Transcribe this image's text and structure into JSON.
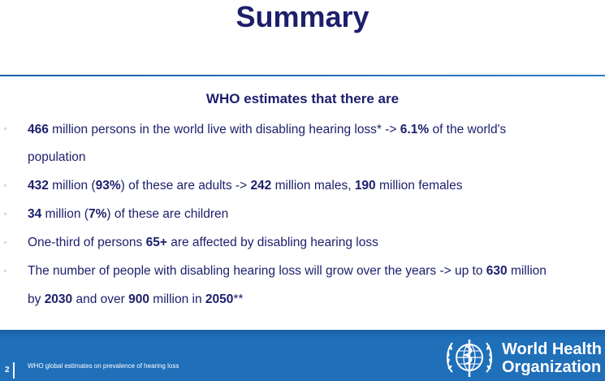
{
  "title": "Summary",
  "subtitle": "WHO estimates that  there are",
  "bullets": {
    "b1": {
      "p1": "466",
      "p2": " million persons in the world live with disabling hearing loss* -> ",
      "p3": "6.1%",
      "p4": " of the world's",
      "p5": "population"
    },
    "b2": {
      "p1": "432",
      "p2": " million (",
      "p3": "93%",
      "p4": ") of these are adults  -> ",
      "p5": "242",
      "p6": " million males, ",
      "p7": "190",
      "p8": " million females"
    },
    "b3": {
      "p1": "34",
      "p2": " million (",
      "p3": "7%",
      "p4": ") of these are children"
    },
    "b4": {
      "p1": "One-third of persons ",
      "p2": "65+",
      "p3": " are affected by disabling hearing loss"
    },
    "b5": {
      "p1": "The number of people with disabling hearing loss will grow over the years -> up to ",
      "p2": "630",
      "p3": " million",
      "p4": "by ",
      "p5": "2030",
      "p6": " and over ",
      "p7": "900",
      "p8": " million in ",
      "p9": "2050",
      "p10": "**"
    }
  },
  "footer": {
    "slide_number": "2",
    "source": "WHO global estimates on prevalence of hearing loss",
    "org_line1": "World Health",
    "org_line2": "Organization"
  },
  "colors": {
    "text": "#1c1f6b",
    "footer": "#1f6fb9",
    "bullet": "#1b6cc2"
  },
  "icons": {
    "bullet": "square-bullet-icon",
    "logo": "who-emblem-icon"
  }
}
